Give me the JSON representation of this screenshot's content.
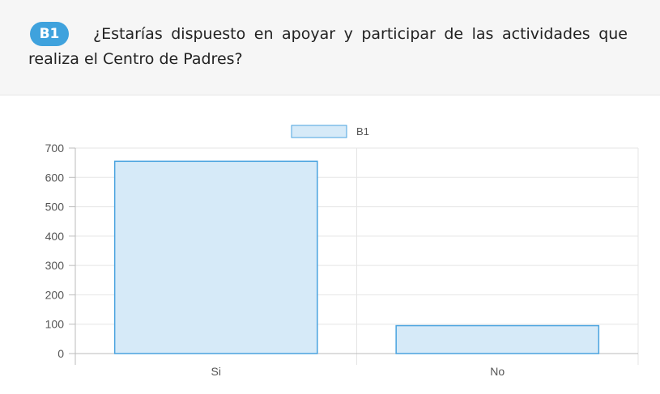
{
  "question": {
    "code": "B1",
    "text": "¿Estarías dispuesto en apoyar y participar de las actividades que realiza el Centro de Padres?"
  },
  "colors": {
    "badge": "#3fa2dd",
    "bar_fill": "#d6eaf8",
    "bar_stroke": "#4aa3df",
    "grid": "#e5e5e5",
    "axis": "#bbbbbb",
    "tick_text": "#555555"
  },
  "chart_data": {
    "type": "bar",
    "categories": [
      "Si",
      "No"
    ],
    "series": [
      {
        "name": "B1",
        "values": [
          655,
          95
        ]
      }
    ],
    "ylim": [
      0,
      700
    ],
    "yticks": [
      0,
      100,
      200,
      300,
      400,
      500,
      600,
      700
    ],
    "grid": true,
    "legend": "top-center",
    "title": "",
    "xlabel": "",
    "ylabel": ""
  }
}
